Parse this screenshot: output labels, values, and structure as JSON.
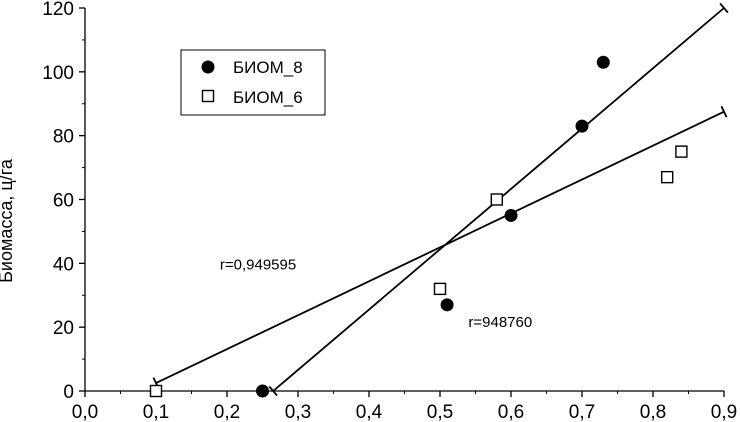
{
  "chart_data": {
    "type": "scatter",
    "title": "",
    "xlabel": "",
    "ylabel": "Биомасса, ц/га",
    "xlim": [
      0.0,
      0.9
    ],
    "ylim": [
      0,
      120
    ],
    "grid": false,
    "legend_position": "top-left",
    "x_tick_labels": [
      "0,0",
      "0,1",
      "0,2",
      "0,3",
      "0,4",
      "0,5",
      "0,6",
      "0,7",
      "0,8",
      "0,9"
    ],
    "y_tick_labels": [
      "0",
      "20",
      "40",
      "60",
      "80",
      "100",
      "120"
    ],
    "series": [
      {
        "name": "БИОМ_8",
        "marker": "filled-circle",
        "points": [
          [
            0.25,
            0
          ],
          [
            0.51,
            27
          ],
          [
            0.6,
            55
          ],
          [
            0.7,
            83
          ],
          [
            0.73,
            103
          ]
        ],
        "fit_line": [
          [
            0.265,
            0
          ],
          [
            0.9,
            120
          ]
        ]
      },
      {
        "name": "БИОМ_6",
        "marker": "open-square",
        "points": [
          [
            0.1,
            0
          ],
          [
            0.5,
            32
          ],
          [
            0.58,
            60
          ],
          [
            0.82,
            67
          ],
          [
            0.84,
            75
          ]
        ],
        "fit_line": [
          [
            0.1,
            2.5
          ],
          [
            0.9,
            87.5
          ]
        ]
      }
    ],
    "annotations": [
      {
        "text": "r=0,949595",
        "x": 0.19,
        "y": 38
      },
      {
        "text": "r=948760",
        "x": 0.54,
        "y": 20
      }
    ]
  }
}
